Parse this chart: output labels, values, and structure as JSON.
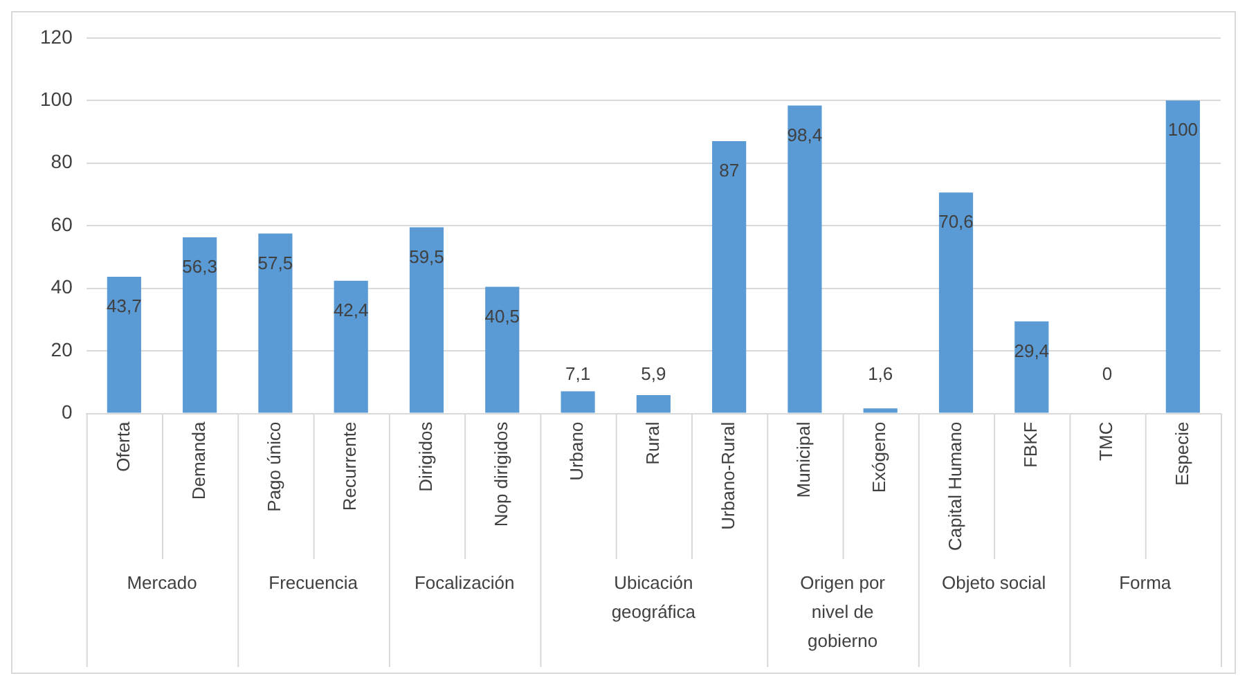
{
  "chart_data": {
    "type": "bar",
    "categories": [
      "Oferta",
      "Demanda",
      "Pago único",
      "Recurrente",
      "Dirigidos",
      "Nop dirigidos",
      "Urbano",
      "Rural",
      "Urbano-Rural",
      "Municipal",
      "Exógeno",
      "Capital Humano",
      "FBKF",
      "TMC",
      "Especie"
    ],
    "values": [
      43.7,
      56.3,
      57.5,
      42.4,
      59.5,
      40.5,
      7.1,
      5.9,
      87,
      98.4,
      1.6,
      70.6,
      29.4,
      0,
      100
    ],
    "value_labels": [
      "43,7",
      "56,3",
      "57,5",
      "42,4",
      "59,5",
      "40,5",
      "7,1",
      "5,9",
      "87",
      "98,4",
      "1,6",
      "70,6",
      "29,4",
      "0",
      "100"
    ],
    "color": "#5b9bd5",
    "ylim": [
      0,
      120
    ],
    "yticks": [
      0,
      20,
      40,
      60,
      80,
      100,
      120
    ],
    "grid": "y",
    "annotations": [
      "Mercado",
      "Frecuencia",
      "Focalización",
      "Ubicación geográfica",
      "Origen por nivel de gobierno",
      "Objeto social",
      "Forma"
    ]
  }
}
